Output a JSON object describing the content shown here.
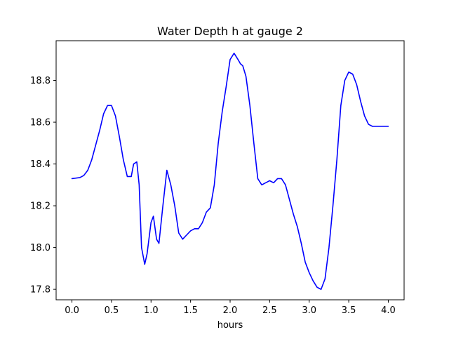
{
  "chart_data": {
    "type": "line",
    "title": "Water Depth h at gauge 2",
    "xlabel": "hours",
    "ylabel": "",
    "xlim": [
      -0.2,
      4.2
    ],
    "ylim": [
      17.75,
      18.99
    ],
    "xticks": [
      0.0,
      0.5,
      1.0,
      1.5,
      2.0,
      2.5,
      3.0,
      3.5,
      4.0
    ],
    "xtick_labels": [
      "0.0",
      "0.5",
      "1.0",
      "1.5",
      "2.0",
      "2.5",
      "3.0",
      "3.5",
      "4.0"
    ],
    "yticks": [
      17.8,
      18.0,
      18.2,
      18.4,
      18.6,
      18.8
    ],
    "ytick_labels": [
      "17.8",
      "18.0",
      "18.2",
      "18.4",
      "18.6",
      "18.8"
    ],
    "grid": false,
    "series": [
      {
        "color": "#0000ff",
        "x": [
          0.0,
          0.1,
          0.15,
          0.2,
          0.25,
          0.3,
          0.35,
          0.4,
          0.45,
          0.5,
          0.55,
          0.6,
          0.65,
          0.7,
          0.75,
          0.78,
          0.82,
          0.85,
          0.88,
          0.92,
          0.95,
          1.0,
          1.03,
          1.07,
          1.1,
          1.15,
          1.2,
          1.25,
          1.3,
          1.35,
          1.4,
          1.45,
          1.5,
          1.55,
          1.6,
          1.65,
          1.7,
          1.75,
          1.8,
          1.85,
          1.9,
          1.95,
          2.0,
          2.05,
          2.1,
          2.13,
          2.16,
          2.2,
          2.25,
          2.3,
          2.35,
          2.4,
          2.45,
          2.5,
          2.55,
          2.6,
          2.65,
          2.7,
          2.75,
          2.8,
          2.85,
          2.9,
          2.95,
          3.0,
          3.05,
          3.1,
          3.15,
          3.2,
          3.25,
          3.3,
          3.35,
          3.4,
          3.45,
          3.5,
          3.55,
          3.6,
          3.65,
          3.7,
          3.75,
          3.8,
          3.85,
          3.9,
          3.95,
          4.0
        ],
        "y": [
          18.33,
          18.335,
          18.345,
          18.37,
          18.42,
          18.49,
          18.56,
          18.64,
          18.68,
          18.68,
          18.63,
          18.53,
          18.42,
          18.34,
          18.34,
          18.4,
          18.41,
          18.3,
          18.0,
          17.92,
          17.97,
          18.12,
          18.15,
          18.04,
          18.02,
          18.2,
          18.37,
          18.3,
          18.2,
          18.07,
          18.04,
          18.06,
          18.08,
          18.09,
          18.09,
          18.12,
          18.17,
          18.19,
          18.3,
          18.5,
          18.65,
          18.77,
          18.9,
          18.93,
          18.9,
          18.88,
          18.87,
          18.82,
          18.68,
          18.5,
          18.33,
          18.3,
          18.31,
          18.32,
          18.31,
          18.33,
          18.33,
          18.3,
          18.23,
          18.16,
          18.1,
          18.02,
          17.93,
          17.88,
          17.84,
          17.81,
          17.8,
          17.85,
          18.0,
          18.2,
          18.42,
          18.68,
          18.8,
          18.84,
          18.83,
          18.78,
          18.7,
          18.63,
          18.59,
          18.58,
          18.58,
          18.58,
          18.58,
          18.58
        ]
      }
    ]
  }
}
